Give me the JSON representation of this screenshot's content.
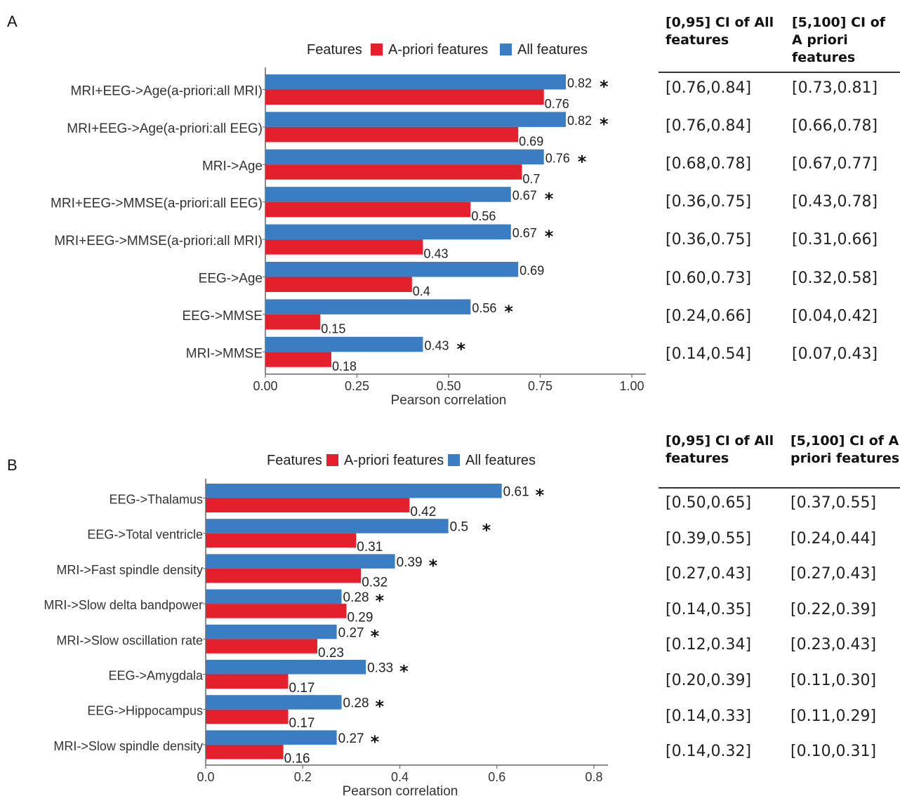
{
  "chart_data": [
    {
      "panel": "A",
      "type": "bar",
      "orientation": "horizontal",
      "legend_title": "Features",
      "legend_position": "top",
      "categories": [
        "MRI+EEG->Age(a-priori:all MRI)",
        "MRI+EEG->Age(a-priori:all EEG)",
        "MRI->Age",
        "MRI+EEG->MMSE(a-priori:all EEG)",
        "MRI+EEG->MMSE(a-priori:all MRI)",
        "EEG->Age",
        "EEG->MMSE",
        "MRI->MMSE"
      ],
      "series": [
        {
          "name": "All features",
          "color": "#3a7dc3",
          "values": [
            0.82,
            0.82,
            0.76,
            0.67,
            0.67,
            0.69,
            0.56,
            0.43
          ],
          "labels": [
            "0.82",
            "0.82",
            "0.76",
            "0.67",
            "0.67",
            "0.69",
            "0.56",
            "0.43"
          ],
          "significant": [
            true,
            true,
            true,
            true,
            true,
            false,
            true,
            true
          ]
        },
        {
          "name": "A-priori features",
          "color": "#e3202b",
          "values": [
            0.76,
            0.69,
            0.7,
            0.56,
            0.43,
            0.4,
            0.15,
            0.18
          ],
          "labels": [
            "0.76",
            "0.69",
            "0.7",
            "0.56",
            "0.43",
            "0.4",
            "0.15",
            "0.18"
          ]
        }
      ],
      "xlabel": "Pearson correlation",
      "xlim": [
        0,
        1.0
      ],
      "xticks": [
        "0.00",
        "0.25",
        "0.50",
        "0.75",
        "1.00"
      ],
      "xtick_values": [
        0,
        0.25,
        0.5,
        0.75,
        1.0
      ],
      "star": "*",
      "table": {
        "col1_title": "[0,95] CI of All features",
        "col2_title": "[5,100] CI of A priori features",
        "rows": [
          [
            "[0.76,0.84]",
            "[0.73,0.81]"
          ],
          [
            "[0.76,0.84]",
            "[0.66,0.78]"
          ],
          [
            "[0.68,0.78]",
            "[0.67,0.77]"
          ],
          [
            "[0.36,0.75]",
            "[0.43,0.78]"
          ],
          [
            "[0.36,0.75]",
            "[0.31,0.66]"
          ],
          [
            "[0.60,0.73]",
            "[0.32,0.58]"
          ],
          [
            "[0.24,0.66]",
            "[0.04,0.42]"
          ],
          [
            "[0.14,0.54]",
            "[0.07,0.43]"
          ]
        ]
      }
    },
    {
      "panel": "B",
      "type": "bar",
      "orientation": "horizontal",
      "legend_title": "Features",
      "legend_position": "top",
      "categories": [
        "EEG->Thalamus",
        "EEG->Total ventricle",
        "MRI->Fast spindle density",
        "MRI->Slow delta bandpower",
        "MRI->Slow oscillation rate",
        "EEG->Amygdala",
        "EEG->Hippocampus",
        "MRI->Slow spindle density"
      ],
      "series": [
        {
          "name": "All features",
          "color": "#3a7dc3",
          "values": [
            0.61,
            0.5,
            0.39,
            0.28,
            0.27,
            0.33,
            0.28,
            0.27
          ],
          "labels": [
            "0.61",
            "0.5",
            "0.39",
            "0.28",
            "0.27",
            "0.33",
            "0.28",
            "0.27"
          ],
          "significant": [
            true,
            true,
            true,
            true,
            true,
            true,
            true,
            true
          ]
        },
        {
          "name": "A-priori features",
          "color": "#e3202b",
          "values": [
            0.42,
            0.31,
            0.32,
            0.29,
            0.23,
            0.17,
            0.17,
            0.16
          ],
          "labels": [
            "0.42",
            "0.31",
            "0.32",
            "0.29",
            "0.23",
            "0.17",
            "0.17",
            "0.16"
          ]
        }
      ],
      "xlabel": "Pearson correlation",
      "xlim": [
        0,
        0.8
      ],
      "xticks": [
        "0.0",
        "0.2",
        "0.4",
        "0.6",
        "0.8"
      ],
      "xtick_values": [
        0,
        0.2,
        0.4,
        0.6,
        0.8
      ],
      "star": "*",
      "table": {
        "col1_title": "[0,95] CI of All features",
        "col2_title": "[5,100] CI of A priori features",
        "rows": [
          [
            "[0.50,0.65]",
            "[0.37,0.55]"
          ],
          [
            "[0.39,0.55]",
            "[0.24,0.44]"
          ],
          [
            "[0.27,0.43]",
            "[0.27,0.43]"
          ],
          [
            "[0.14,0.35]",
            "[0.22,0.39]"
          ],
          [
            "[0.12,0.34]",
            "[0.23,0.43]"
          ],
          [
            "[0.20,0.39]",
            "[0.11,0.30]"
          ],
          [
            "[0.14,0.33]",
            "[0.11,0.29]"
          ],
          [
            "[0.14,0.32]",
            "[0.10,0.31]"
          ]
        ]
      }
    }
  ]
}
